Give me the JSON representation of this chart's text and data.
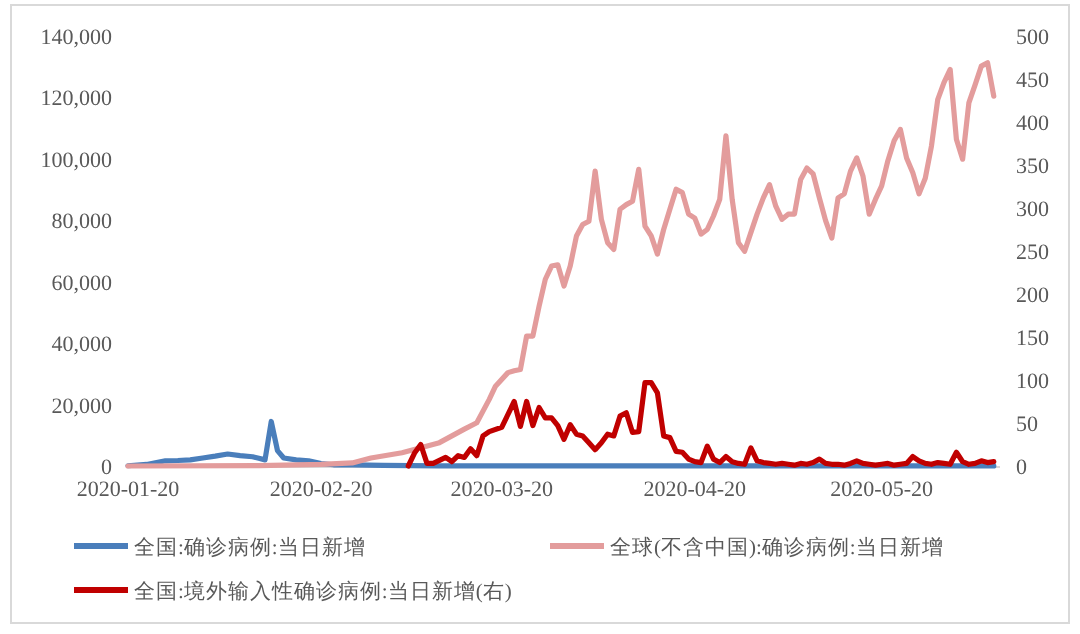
{
  "chart_data": {
    "type": "line",
    "xlim": [
      "2020-01-20",
      "2020-06-08"
    ],
    "xticks": [
      "2020-01-20",
      "2020-02-20",
      "2020-03-20",
      "2020-04-20",
      "2020-05-20"
    ],
    "ylim": [
      0,
      140000
    ],
    "yticks": [
      0,
      {
        "value": 20000,
        "label": "20,000"
      },
      {
        "value": 40000,
        "label": "40,000"
      },
      {
        "value": 60000,
        "label": "60,000"
      },
      {
        "value": 80000,
        "label": "80,000"
      },
      {
        "value": 100000,
        "label": "100,000"
      },
      {
        "value": 120000,
        "label": "120,000"
      },
      {
        "value": 140000,
        "label": "140,000"
      }
    ],
    "y2lim": [
      0,
      500
    ],
    "y2ticks": [
      0,
      50,
      100,
      150,
      200,
      250,
      300,
      350,
      400,
      450,
      500
    ],
    "grid": false,
    "legend": "bottom",
    "series": [
      {
        "name": "全国:确诊病例:当日新增",
        "color": "#4a7ebb",
        "x": [
          "2020-01-20",
          "2020-01-23",
          "2020-01-26",
          "2020-01-28",
          "2020-01-30",
          "2020-02-01",
          "2020-02-03",
          "2020-02-05",
          "2020-02-07",
          "2020-02-09",
          "2020-02-10",
          "2020-02-11",
          "2020-02-12",
          "2020-02-13",
          "2020-02-14",
          "2020-02-16",
          "2020-02-18",
          "2020-02-20",
          "2020-02-22",
          "2020-02-25",
          "2020-03-01",
          "2020-03-10",
          "2020-04-01",
          "2020-05-01",
          "2020-06-07"
        ],
        "values": [
          77,
          500,
          1700,
          1800,
          2000,
          2600,
          3200,
          3900,
          3400,
          3000,
          2500,
          2000,
          14500,
          5000,
          2600,
          2000,
          1700,
          800,
          400,
          400,
          200,
          50,
          50,
          10,
          10
        ]
      },
      {
        "name": "全球(不含中国):确诊病例:当日新增",
        "color": "#e39c9c",
        "x": [
          "2020-01-20",
          "2020-02-10",
          "2020-02-20",
          "2020-02-25",
          "2020-02-28",
          "2020-03-04",
          "2020-03-10",
          "2020-03-14",
          "2020-03-16",
          "2020-03-18",
          "2020-03-19",
          "2020-03-21",
          "2020-03-22",
          "2020-03-23",
          "2020-03-24",
          "2020-03-25",
          "2020-03-26",
          "2020-03-27",
          "2020-03-28",
          "2020-03-29",
          "2020-03-30",
          "2020-03-31",
          "2020-04-01",
          "2020-04-02",
          "2020-04-03",
          "2020-04-04",
          "2020-04-05",
          "2020-04-06",
          "2020-04-07",
          "2020-04-08",
          "2020-04-09",
          "2020-04-10",
          "2020-04-11",
          "2020-04-12",
          "2020-04-13",
          "2020-04-14",
          "2020-04-15",
          "2020-04-16",
          "2020-04-17",
          "2020-04-18",
          "2020-04-19",
          "2020-04-20",
          "2020-04-21",
          "2020-04-22",
          "2020-04-23",
          "2020-04-24",
          "2020-04-25",
          "2020-04-26",
          "2020-04-27",
          "2020-04-28",
          "2020-04-29",
          "2020-04-30",
          "2020-05-01",
          "2020-05-02",
          "2020-05-03",
          "2020-05-04",
          "2020-05-05",
          "2020-05-06",
          "2020-05-07",
          "2020-05-08",
          "2020-05-09",
          "2020-05-10",
          "2020-05-11",
          "2020-05-12",
          "2020-05-13",
          "2020-05-14",
          "2020-05-15",
          "2020-05-16",
          "2020-05-17",
          "2020-05-18",
          "2020-05-19",
          "2020-05-20",
          "2020-05-21",
          "2020-05-22",
          "2020-05-23",
          "2020-05-24",
          "2020-05-25",
          "2020-05-26",
          "2020-05-27",
          "2020-05-28",
          "2020-05-29",
          "2020-05-30",
          "2020-05-31",
          "2020-06-01",
          "2020-06-02",
          "2020-06-03",
          "2020-06-04",
          "2020-06-05",
          "2020-06-06",
          "2020-06-07"
        ],
        "values": [
          0,
          100,
          500,
          1000,
          2600,
          4300,
          7600,
          12000,
          14100,
          21700,
          26000,
          30400,
          31000,
          31400,
          42300,
          42300,
          52000,
          60800,
          65100,
          65500,
          58600,
          65100,
          74900,
          78600,
          79700,
          96000,
          80300,
          72700,
          70500,
          83600,
          85100,
          86200,
          96600,
          78100,
          74900,
          69000,
          77000,
          83600,
          90100,
          89000,
          82000,
          80700,
          75500,
          77000,
          81400,
          86800,
          107500,
          86800,
          72700,
          69900,
          76000,
          82000,
          87300,
          91600,
          84600,
          80300,
          82000,
          82000,
          93300,
          97000,
          95100,
          87300,
          79900,
          74200,
          87300,
          88600,
          96000,
          100300,
          94400,
          82000,
          86800,
          91200,
          99400,
          105900,
          109600,
          100300,
          95500,
          88600,
          93700,
          104200,
          119300,
          124800,
          129100,
          106400,
          99900,
          118200,
          124100,
          130200,
          131300,
          120400
        ]
      },
      {
        "name": "全国:境外输入性确诊病例:当日新增(右)",
        "color": "#c00000",
        "axis": "y2",
        "x": [
          "2020-03-05",
          "2020-03-06",
          "2020-03-07",
          "2020-03-08",
          "2020-03-09",
          "2020-03-11",
          "2020-03-12",
          "2020-03-13",
          "2020-03-14",
          "2020-03-15",
          "2020-03-16",
          "2020-03-17",
          "2020-03-18",
          "2020-03-20",
          "2020-03-22",
          "2020-03-23",
          "2020-03-24",
          "2020-03-25",
          "2020-03-26",
          "2020-03-27",
          "2020-03-28",
          "2020-03-29",
          "2020-03-30",
          "2020-03-31",
          "2020-04-01",
          "2020-04-02",
          "2020-04-03",
          "2020-04-04",
          "2020-04-05",
          "2020-04-06",
          "2020-04-07",
          "2020-04-08",
          "2020-04-09",
          "2020-04-10",
          "2020-04-11",
          "2020-04-12",
          "2020-04-13",
          "2020-04-14",
          "2020-04-15",
          "2020-04-16",
          "2020-04-17",
          "2020-04-18",
          "2020-04-19",
          "2020-04-20",
          "2020-04-21",
          "2020-04-22",
          "2020-04-23",
          "2020-04-24",
          "2020-04-25",
          "2020-04-26",
          "2020-04-27",
          "2020-04-28",
          "2020-04-29",
          "2020-04-30",
          "2020-05-01",
          "2020-05-02",
          "2020-05-03",
          "2020-05-04",
          "2020-05-05",
          "2020-05-06",
          "2020-05-07",
          "2020-05-08",
          "2020-05-09",
          "2020-05-10",
          "2020-05-11",
          "2020-05-12",
          "2020-05-13",
          "2020-05-14",
          "2020-05-15",
          "2020-05-16",
          "2020-05-17",
          "2020-05-18",
          "2020-05-19",
          "2020-05-20",
          "2020-05-21",
          "2020-05-22",
          "2020-05-23",
          "2020-05-24",
          "2020-05-25",
          "2020-05-26",
          "2020-05-27",
          "2020-05-28",
          "2020-05-29",
          "2020-05-30",
          "2020-05-31",
          "2020-06-01",
          "2020-06-02",
          "2020-06-03",
          "2020-06-04",
          "2020-06-05",
          "2020-06-06",
          "2020-06-07"
        ],
        "values": [
          0,
          15,
          25,
          3,
          3,
          10,
          5,
          12,
          10,
          20,
          12,
          35,
          40,
          45,
          75,
          46,
          75,
          47,
          68,
          56,
          56,
          47,
          31,
          48,
          37,
          35,
          27,
          19,
          27,
          37,
          35,
          58,
          62,
          39,
          40,
          97,
          97,
          85,
          35,
          33,
          17,
          16,
          8,
          5,
          4,
          23,
          8,
          4,
          11,
          5,
          3,
          2,
          21,
          6,
          4,
          3,
          2,
          3,
          2,
          1,
          3,
          2,
          4,
          8,
          3,
          2,
          2,
          1,
          3,
          6,
          3,
          2,
          1,
          2,
          3,
          1,
          2,
          3,
          11,
          6,
          3,
          2,
          4,
          3,
          2,
          16,
          5,
          2,
          3,
          6,
          4,
          5
        ]
      }
    ]
  }
}
